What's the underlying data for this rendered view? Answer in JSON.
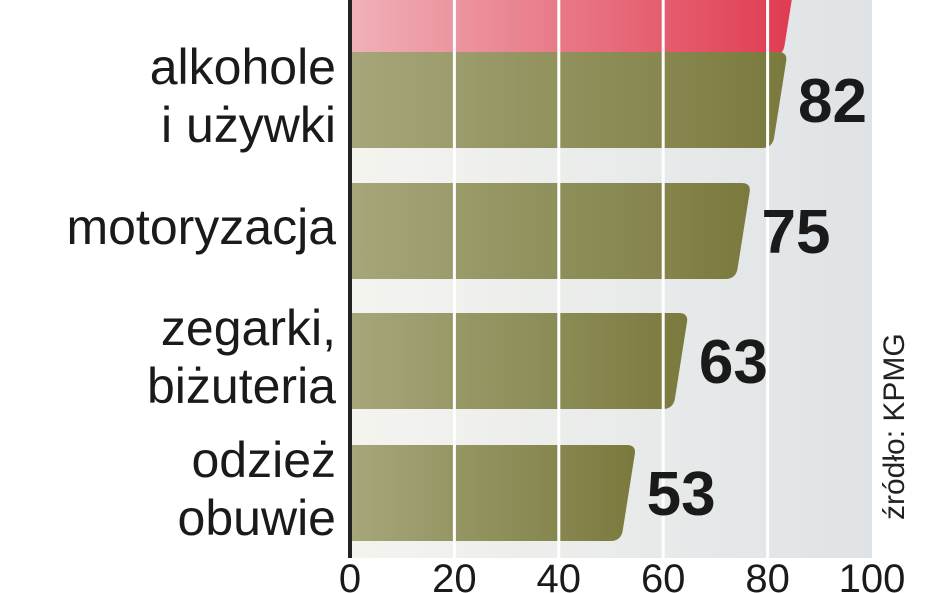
{
  "chart_data": {
    "type": "bar",
    "orientation": "horizontal",
    "categories": [
      "",
      "alkohole\ni używki",
      "motoryzacja",
      "zegarki,\nbiżuteria",
      "odzież\nobuwie"
    ],
    "values": [
      84,
      82,
      75,
      63,
      53
    ],
    "value_labels": [
      "",
      "82",
      "75",
      "63",
      "53"
    ],
    "xlim": [
      0,
      100
    ],
    "xticks": [
      "0",
      "20",
      "40",
      "60",
      "80",
      "100"
    ],
    "grid": true,
    "source": "źródło: KPMG",
    "colors": {
      "bar": "#7a7a3e",
      "bar_light": "#a6a67a",
      "highlight_bar": "#e03a50",
      "highlight_bar_light": "#f0b0b8",
      "background": "#e8ebe8",
      "axis": "#222222"
    }
  }
}
